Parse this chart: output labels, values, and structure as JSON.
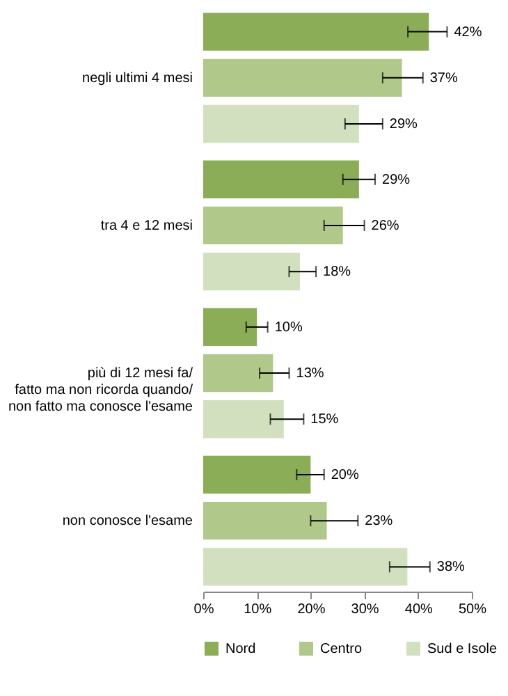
{
  "chart_data": {
    "type": "bar",
    "orientation": "horizontal",
    "categories": [
      "negli ultimi 4 mesi",
      "tra  4 e 12 mesi",
      "più di 12 mesi fa/ fatto ma non ricorda quando/ non fatto ma conosce l'esame",
      "non conosce l'esame"
    ],
    "series": [
      {
        "name": "Nord",
        "color": "#8cad57",
        "values": [
          42,
          29,
          10,
          20
        ],
        "errors": [
          [
            38.1,
            45.4
          ],
          [
            26,
            32
          ],
          [
            8,
            12
          ],
          [
            17.4,
            22.5
          ]
        ],
        "value_labels": [
          "42%",
          "29%",
          "10%",
          "20%"
        ]
      },
      {
        "name": "Centro",
        "color": "#b0c98a",
        "values": [
          37,
          26,
          13,
          23
        ],
        "errors": [
          [
            33.4,
            40.9
          ],
          [
            22.5,
            30
          ],
          [
            10.5,
            16
          ],
          [
            20,
            28.8
          ]
        ],
        "value_labels": [
          "37%",
          "26%",
          "13%",
          "23%"
        ]
      },
      {
        "name": "Sud e Isole",
        "color": "#d3e0bf",
        "values": [
          29,
          18,
          15,
          38
        ],
        "errors": [
          [
            26.4,
            33.4
          ],
          [
            16,
            21
          ],
          [
            12.5,
            18.7
          ],
          [
            34.7,
            42.2
          ]
        ],
        "value_labels": [
          "29%",
          "18%",
          "15%",
          "38%"
        ]
      }
    ],
    "xlim": [
      0,
      50
    ],
    "xticks": [
      {
        "value": 0,
        "label": "0%"
      },
      {
        "value": 10,
        "label": "10%"
      },
      {
        "value": 20,
        "label": "20%"
      },
      {
        "value": 30,
        "label": "30%"
      },
      {
        "value": 40,
        "label": "40%"
      },
      {
        "value": 50,
        "label": "50%"
      }
    ],
    "grid": false,
    "legend": "bottom"
  }
}
